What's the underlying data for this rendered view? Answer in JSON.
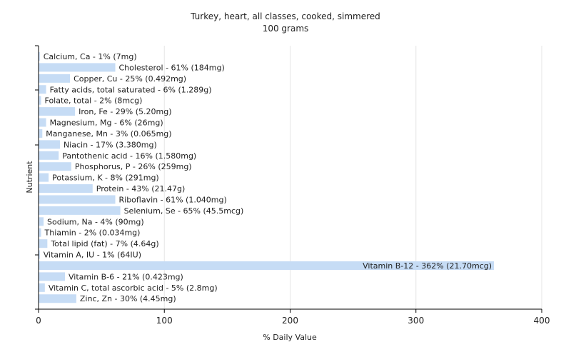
{
  "chart_data": {
    "type": "bar",
    "orientation": "horizontal",
    "title": "Turkey, heart, all classes, cooked, simmered",
    "subtitle": "100 grams",
    "xlabel": "% Daily Value",
    "ylabel": "Nutrient",
    "xlim": [
      0,
      400
    ],
    "xticks": [
      0,
      100,
      200,
      300,
      400
    ],
    "grid": true,
    "bar_color": "#c6dcf5",
    "categories": [
      "Calcium, Ca",
      "Cholesterol",
      "Copper, Cu",
      "Fatty acids, total saturated",
      "Folate, total",
      "Iron, Fe",
      "Magnesium, Mg",
      "Manganese, Mn",
      "Niacin",
      "Pantothenic acid",
      "Phosphorus, P",
      "Potassium, K",
      "Protein",
      "Riboflavin",
      "Selenium, Se",
      "Sodium, Na",
      "Thiamin",
      "Total lipid (fat)",
      "Vitamin A, IU",
      "Vitamin B-12",
      "Vitamin B-6",
      "Vitamin C, total ascorbic acid",
      "Zinc, Zn"
    ],
    "values": [
      1,
      61,
      25,
      6,
      2,
      29,
      6,
      3,
      17,
      16,
      26,
      8,
      43,
      61,
      65,
      4,
      2,
      7,
      1,
      362,
      21,
      5,
      30
    ],
    "labels": [
      "Calcium, Ca - 1% (7mg)",
      "Cholesterol - 61% (184mg)",
      "Copper, Cu - 25% (0.492mg)",
      "Fatty acids, total saturated - 6% (1.289g)",
      "Folate, total - 2% (8mcg)",
      "Iron, Fe - 29% (5.20mg)",
      "Magnesium, Mg - 6% (26mg)",
      "Manganese, Mn - 3% (0.065mg)",
      "Niacin - 17% (3.380mg)",
      "Pantothenic acid - 16% (1.580mg)",
      "Phosphorus, P - 26% (259mg)",
      "Potassium, K - 8% (291mg)",
      "Protein - 43% (21.47g)",
      "Riboflavin - 61% (1.040mg)",
      "Selenium, Se - 65% (45.5mcg)",
      "Sodium, Na - 4% (90mg)",
      "Thiamin - 2% (0.034mg)",
      "Total lipid (fat) - 7% (4.64g)",
      "Vitamin A, IU - 1% (64IU)",
      "Vitamin B-12 - 362% (21.70mcg)",
      "Vitamin B-6 - 21% (0.423mg)",
      "Vitamin C, total ascorbic acid - 5% (2.8mg)",
      "Zinc, Zn - 30% (4.45mg)"
    ]
  }
}
